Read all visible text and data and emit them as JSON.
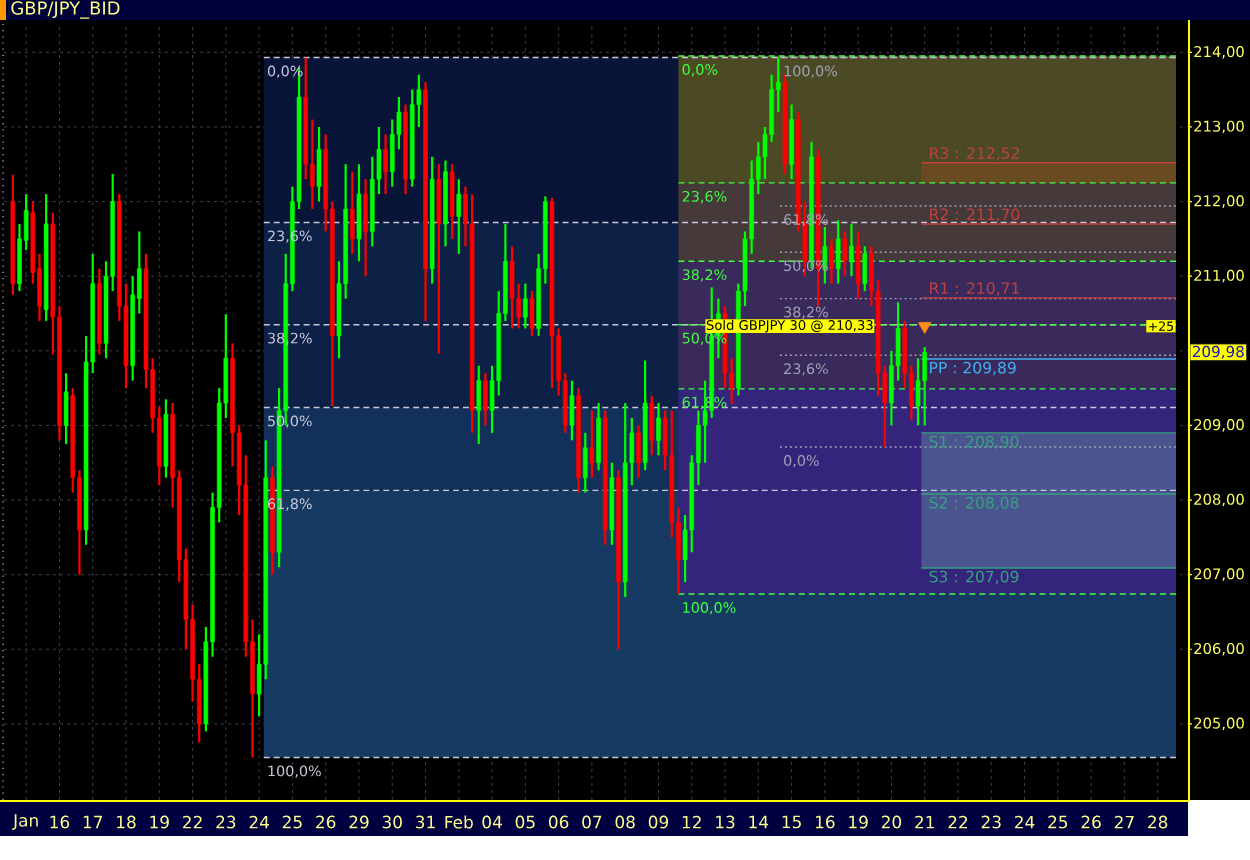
{
  "chart_data": {
    "type": "candlestick",
    "title": "GBP/JPY_BID",
    "categories": [
      null,
      null,
      "Jan",
      null,
      null,
      null,
      null,
      "16",
      null,
      null,
      null,
      null,
      "17",
      null,
      null,
      null,
      null,
      "18",
      null,
      null,
      null,
      null,
      "19",
      null,
      null,
      null,
      null,
      "22",
      null,
      null,
      null,
      null,
      "23",
      null,
      null,
      null,
      null,
      "24",
      null,
      null,
      null,
      null,
      "25",
      null,
      null,
      null,
      null,
      "26",
      null,
      null,
      null,
      null,
      "29",
      null,
      null,
      null,
      null,
      "30",
      null,
      null,
      null,
      null,
      "31",
      null,
      null,
      null,
      null,
      "Feb",
      null,
      null,
      null,
      null,
      "04",
      null,
      null,
      null,
      null,
      "05",
      null,
      null,
      null,
      null,
      "06",
      null,
      null,
      null,
      null,
      "07",
      null,
      null,
      null,
      null,
      "08",
      null,
      null,
      null,
      null,
      "09",
      null,
      null,
      null,
      null,
      "12",
      null,
      null,
      null,
      null,
      "13",
      null,
      null,
      null,
      null,
      "14",
      null,
      null,
      null,
      null,
      "15",
      null,
      null,
      null,
      null,
      "16",
      null,
      null,
      null,
      null,
      "19",
      null,
      null,
      null,
      null,
      "20",
      null,
      null,
      null,
      null,
      "21",
      null,
      null,
      null,
      null,
      "22",
      null,
      null,
      null,
      null,
      "23",
      null,
      null,
      null,
      null,
      "24",
      null,
      null,
      null,
      null,
      "25",
      null,
      null,
      null,
      null,
      "26",
      null,
      null,
      null,
      null,
      "27",
      null,
      null,
      null,
      null,
      "28",
      null,
      null,
      null,
      null
    ],
    "ohlc": [
      [
        212.0,
        212.36,
        210.75,
        210.9
      ],
      [
        210.9,
        211.7,
        210.8,
        211.5
      ],
      [
        211.48,
        212.1,
        211.35,
        211.88
      ],
      [
        211.85,
        212.0,
        210.9,
        211.05
      ],
      [
        211.1,
        211.3,
        210.4,
        210.6
      ],
      [
        210.55,
        212.1,
        210.4,
        211.7
      ],
      [
        211.7,
        211.85,
        209.95,
        210.45
      ],
      [
        210.45,
        210.6,
        208.8,
        209.0
      ],
      [
        209.0,
        209.7,
        208.75,
        209.45
      ],
      [
        209.4,
        209.5,
        208.1,
        208.3
      ],
      [
        208.3,
        208.4,
        207.0,
        207.6
      ],
      [
        207.6,
        210.2,
        207.4,
        209.85
      ],
      [
        209.85,
        211.3,
        209.7,
        210.9
      ],
      [
        210.9,
        211.1,
        209.95,
        210.1
      ],
      [
        210.1,
        211.2,
        209.9,
        211.0
      ],
      [
        211.0,
        212.37,
        210.8,
        212.0
      ],
      [
        212.0,
        212.1,
        210.4,
        210.6
      ],
      [
        210.6,
        210.9,
        209.5,
        209.8
      ],
      [
        209.8,
        211.0,
        209.6,
        210.75
      ],
      [
        210.7,
        211.6,
        210.5,
        211.1
      ],
      [
        211.1,
        211.3,
        209.5,
        209.75
      ],
      [
        209.75,
        209.9,
        208.9,
        209.1
      ],
      [
        209.1,
        209.25,
        208.2,
        208.45
      ],
      [
        208.45,
        209.35,
        208.3,
        209.15
      ],
      [
        209.15,
        209.3,
        207.9,
        208.3
      ],
      [
        208.3,
        208.4,
        206.9,
        207.2
      ],
      [
        207.2,
        207.35,
        206.0,
        206.4
      ],
      [
        206.4,
        206.6,
        205.3,
        205.6
      ],
      [
        205.6,
        205.8,
        204.75,
        205.0
      ],
      [
        205.0,
        206.3,
        204.9,
        206.1
      ],
      [
        206.1,
        208.1,
        205.9,
        207.9
      ],
      [
        207.9,
        209.5,
        207.7,
        209.3
      ],
      [
        209.3,
        210.49,
        209.1,
        209.9
      ],
      [
        209.9,
        210.1,
        208.45,
        208.9
      ],
      [
        208.9,
        209.0,
        207.8,
        208.2
      ],
      [
        208.2,
        208.6,
        205.9,
        206.1
      ],
      [
        206.1,
        206.4,
        204.55,
        205.4
      ],
      [
        205.4,
        206.2,
        205.1,
        205.8
      ],
      [
        205.8,
        208.8,
        205.6,
        208.3
      ],
      [
        208.3,
        208.45,
        207.0,
        207.3
      ],
      [
        207.3,
        209.5,
        207.1,
        209.2
      ],
      [
        209.2,
        211.3,
        209.0,
        210.9
      ],
      [
        210.9,
        212.2,
        210.8,
        212.0
      ],
      [
        212.0,
        213.8,
        211.9,
        213.4
      ],
      [
        213.4,
        213.93,
        212.3,
        212.5
      ],
      [
        212.5,
        213.1,
        211.9,
        212.2
      ],
      [
        212.2,
        213.0,
        212.0,
        212.7
      ],
      [
        212.7,
        212.9,
        211.6,
        211.9
      ],
      [
        211.9,
        212.0,
        209.26,
        210.2
      ],
      [
        210.2,
        211.2,
        209.9,
        210.9
      ],
      [
        210.9,
        212.5,
        210.7,
        211.9
      ],
      [
        211.9,
        212.4,
        211.3,
        211.5
      ],
      [
        211.5,
        212.5,
        211.2,
        212.1
      ],
      [
        212.1,
        212.3,
        211.0,
        211.6
      ],
      [
        211.6,
        212.6,
        211.4,
        212.3
      ],
      [
        212.3,
        213.0,
        212.1,
        212.7
      ],
      [
        212.7,
        212.9,
        212.1,
        212.4
      ],
      [
        212.4,
        213.1,
        212.2,
        212.9
      ],
      [
        212.9,
        213.4,
        212.7,
        213.2
      ],
      [
        213.2,
        213.3,
        212.1,
        212.3
      ],
      [
        212.3,
        213.5,
        212.2,
        213.3
      ],
      [
        213.3,
        213.7,
        213.0,
        213.5
      ],
      [
        213.5,
        213.6,
        210.4,
        211.1
      ],
      [
        211.1,
        212.6,
        210.9,
        212.3
      ],
      [
        212.3,
        212.5,
        209.96,
        211.7
      ],
      [
        211.7,
        212.55,
        211.4,
        212.4
      ],
      [
        212.4,
        212.5,
        211.5,
        211.8
      ],
      [
        211.8,
        212.3,
        211.3,
        212.1
      ],
      [
        212.1,
        212.2,
        211.4,
        211.7
      ],
      [
        211.7,
        212.1,
        208.9,
        209.2
      ],
      [
        209.2,
        209.8,
        208.75,
        209.6
      ],
      [
        209.6,
        209.7,
        209.0,
        209.2
      ],
      [
        209.2,
        209.8,
        208.9,
        209.6
      ],
      [
        209.6,
        210.8,
        209.4,
        210.5
      ],
      [
        210.5,
        211.7,
        210.4,
        211.2
      ],
      [
        211.2,
        211.4,
        210.3,
        210.7
      ],
      [
        210.7,
        210.9,
        210.3,
        210.45
      ],
      [
        210.45,
        210.9,
        210.3,
        210.7
      ],
      [
        210.7,
        210.8,
        210.2,
        210.3
      ],
      [
        210.3,
        211.3,
        210.2,
        211.1
      ],
      [
        211.1,
        212.07,
        210.9,
        212.0
      ],
      [
        212.0,
        212.05,
        209.5,
        210.2
      ],
      [
        210.2,
        210.3,
        209.4,
        209.6
      ],
      [
        209.6,
        209.7,
        208.9,
        209.0
      ],
      [
        209.0,
        209.6,
        208.8,
        209.4
      ],
      [
        209.4,
        209.5,
        208.1,
        208.3
      ],
      [
        208.3,
        208.9,
        208.1,
        208.7
      ],
      [
        208.7,
        209.2,
        208.3,
        208.5
      ],
      [
        208.5,
        209.3,
        208.4,
        209.1
      ],
      [
        209.1,
        209.2,
        207.4,
        207.6
      ],
      [
        207.6,
        208.5,
        207.4,
        208.3
      ],
      [
        208.3,
        208.4,
        206.0,
        206.9
      ],
      [
        206.9,
        209.3,
        206.7,
        208.5
      ],
      [
        208.5,
        209.1,
        208.2,
        208.9
      ],
      [
        208.9,
        209.0,
        208.3,
        208.5
      ],
      [
        208.5,
        209.87,
        208.4,
        209.3
      ],
      [
        209.3,
        209.4,
        208.6,
        208.8
      ],
      [
        208.8,
        209.3,
        208.6,
        209.1
      ],
      [
        209.1,
        209.2,
        208.4,
        208.6
      ],
      [
        208.6,
        209.2,
        207.5,
        207.7
      ],
      [
        207.7,
        207.9,
        206.74,
        207.2
      ],
      [
        207.2,
        207.8,
        206.9,
        207.6
      ],
      [
        207.6,
        208.6,
        207.3,
        208.5
      ],
      [
        208.5,
        209.2,
        208.2,
        209.0
      ],
      [
        209.0,
        209.6,
        208.5,
        209.2
      ],
      [
        209.2,
        210.85,
        209.1,
        210.2
      ],
      [
        210.2,
        210.7,
        209.9,
        210.5
      ],
      [
        210.5,
        210.6,
        209.5,
        209.7
      ],
      [
        209.7,
        209.9,
        209.29,
        209.5
      ],
      [
        209.5,
        210.9,
        209.4,
        210.8
      ],
      [
        210.8,
        211.6,
        210.6,
        211.5
      ],
      [
        211.5,
        212.55,
        211.3,
        212.3
      ],
      [
        212.3,
        212.8,
        212.1,
        212.6
      ],
      [
        212.6,
        213.0,
        212.3,
        212.9
      ],
      [
        212.9,
        213.7,
        212.8,
        213.5
      ],
      [
        213.5,
        213.93,
        213.2,
        213.6
      ],
      [
        213.6,
        213.7,
        212.37,
        212.5
      ],
      [
        212.5,
        213.3,
        212.3,
        213.1
      ],
      [
        213.1,
        213.2,
        211.6,
        211.7
      ],
      [
        211.7,
        212.0,
        211.0,
        211.2
      ],
      [
        211.2,
        212.8,
        211.1,
        212.6
      ],
      [
        212.6,
        212.7,
        210.6,
        211.1
      ],
      [
        211.1,
        211.66,
        210.9,
        211.4
      ],
      [
        211.4,
        211.5,
        210.9,
        211.1
      ],
      [
        211.1,
        211.75,
        210.9,
        211.5
      ],
      [
        211.5,
        211.6,
        211.0,
        211.2
      ],
      [
        211.2,
        211.7,
        211.0,
        211.4
      ],
      [
        211.4,
        211.6,
        210.7,
        210.9
      ],
      [
        210.9,
        211.4,
        210.8,
        211.3
      ],
      [
        211.3,
        211.4,
        210.6,
        210.8
      ],
      [
        210.8,
        210.95,
        209.4,
        209.7
      ],
      [
        209.7,
        209.8,
        208.71,
        209.3
      ],
      [
        209.3,
        210.0,
        209.0,
        209.8
      ],
      [
        209.8,
        210.65,
        209.6,
        210.3
      ],
      [
        210.3,
        210.4,
        209.5,
        209.7
      ],
      [
        209.7,
        209.8,
        209.07,
        209.26
      ],
      [
        209.26,
        209.9,
        209.0,
        209.6
      ],
      [
        209.6,
        210.05,
        209.0,
        209.98
      ],
      null,
      null,
      null,
      null,
      null,
      null,
      null,
      null,
      null,
      null,
      null,
      null,
      null,
      null,
      null,
      null,
      null,
      null,
      null,
      null,
      null,
      null,
      null,
      null,
      null,
      null,
      null,
      null,
      null,
      null,
      null,
      null,
      null,
      null,
      null,
      null,
      null,
      null,
      null
    ],
    "colors": [
      "#ff0000",
      "#00ff00",
      "#00ff00",
      "#ff0000",
      "#ff0000",
      "#00ff00",
      "#ff0000",
      "#ff0000",
      "#00ff00",
      "#ff0000",
      "#ff0000",
      "#00ff00",
      "#00ff00",
      "#ff0000",
      "#00ff00",
      "#00ff00",
      "#ff0000",
      "#ff0000",
      "#00ff00",
      "#00ff00",
      "#ff0000",
      "#ff0000",
      "#ff0000",
      "#00ff00",
      "#ff0000",
      "#ff0000",
      "#ff0000",
      "#ff0000",
      "#ff0000",
      "#00ff00",
      "#00ff00",
      "#00ff00",
      "#00ff00",
      "#ff0000",
      "#ff0000",
      "#ff0000",
      "#ff0000",
      "#00ff00",
      "#00ff00",
      "#ff0000",
      "#00ff00",
      "#00ff00",
      "#00ff00",
      "#00ff00",
      "#ff0000",
      "#ff0000",
      "#00ff00",
      "#ff0000",
      "#ff0000",
      "#00ff00",
      "#00ff00",
      "#ff0000",
      "#00ff00",
      "#ff0000",
      "#00ff00",
      "#00ff00",
      "#ff0000",
      "#00ff00",
      "#00ff00",
      "#ff0000",
      "#00ff00",
      "#00ff00",
      "#ff0000",
      "#00ff00",
      "#ff0000",
      "#00ff00",
      "#ff0000",
      "#00ff00",
      "#ff0000",
      "#ff0000",
      "#00ff00",
      "#ff0000",
      "#00ff00",
      "#00ff00",
      "#00ff00",
      "#ff0000",
      "#ff0000",
      "#00ff00",
      "#ff0000",
      "#00ff00",
      "#00ff00",
      "#ff0000",
      "#ff0000",
      "#ff0000",
      "#00ff00",
      "#ff0000",
      "#00ff00",
      "#ff0000",
      "#00ff00",
      "#ff0000",
      "#00ff00",
      "#ff0000",
      "#00ff00",
      "#00ff00",
      "#ff0000",
      "#00ff00",
      "#ff0000",
      "#00ff00",
      "#ff0000",
      "#ff0000",
      "#ff0000",
      "#00ff00",
      "#00ff00",
      "#00ff00",
      "#00ff00",
      "#00ff00",
      "#00ff00",
      "#ff0000",
      "#ff0000",
      "#00ff00",
      "#00ff00",
      "#00ff00",
      "#00ff00",
      "#00ff00",
      "#00ff00",
      "#00ff00",
      "#ff0000",
      "#00ff00",
      "#ff0000",
      "#ff0000",
      "#00ff00",
      "#ff0000",
      "#00ff00",
      "#ff0000",
      "#00ff00",
      "#ff0000",
      "#00ff00",
      "#ff0000",
      "#00ff00",
      "#ff0000",
      "#ff0000",
      "#ff0000",
      "#00ff00",
      "#00ff00",
      "#ff0000",
      "#ff0000",
      "#00ff00",
      "#00ff00",
      null,
      null,
      null,
      null,
      null,
      null,
      null,
      null,
      null,
      null,
      null,
      null,
      null,
      null,
      null,
      null,
      null,
      null,
      null,
      null,
      null,
      null,
      null,
      null,
      null,
      null,
      null,
      null,
      null,
      null,
      null,
      null,
      null,
      null,
      null,
      null,
      null,
      null,
      null
    ],
    "series": [
      {
        "type": "scatter",
        "values": [
          null,
          null,
          null,
          null,
          null,
          null,
          null,
          null,
          null,
          null,
          null,
          null,
          null,
          null,
          null,
          null,
          null,
          null,
          null,
          null,
          null,
          null,
          null,
          null,
          null,
          null,
          null,
          null,
          null,
          null,
          null,
          null,
          null,
          null,
          null,
          null,
          null,
          null,
          null,
          null,
          null,
          null,
          null,
          null,
          null,
          null,
          null,
          null,
          null,
          null,
          null,
          null,
          null,
          null,
          null,
          null,
          null,
          null,
          null,
          null,
          null,
          null,
          null,
          null,
          null,
          null,
          null,
          null,
          null,
          null,
          null,
          null,
          null,
          null,
          null,
          null,
          null,
          null,
          null,
          null,
          null,
          null,
          null,
          null,
          null,
          null,
          null,
          null,
          null,
          null,
          null,
          null,
          null,
          null,
          null,
          null,
          null,
          null,
          null,
          null,
          null,
          null,
          null,
          null,
          null,
          null,
          null,
          null,
          null,
          null,
          null,
          null,
          null,
          null,
          null,
          null,
          null,
          null,
          null,
          null,
          null,
          null,
          null,
          null,
          null,
          null,
          null,
          null,
          null,
          null,
          null,
          null,
          null,
          null,
          null,
          null,
          null,
          210.33,
          null,
          null,
          null,
          null,
          null,
          null,
          null,
          null,
          null,
          null,
          null,
          null,
          null,
          null,
          null,
          null,
          null,
          null,
          null,
          null,
          null,
          null,
          null,
          null,
          null,
          null,
          null,
          null,
          null,
          null,
          null,
          null,
          null,
          null,
          null,
          null,
          null,
          null,
          null
        ],
        "color": "#ff8c1a",
        "marker": "triangle"
      }
    ],
    "ref_lines": [
      {
        "axis": "y",
        "value": 213.93,
        "color": "#c8c8dc",
        "line_style": "dashed"
      },
      {
        "axis": "y",
        "value": 211.72,
        "color": "#c8c8dc",
        "line_style": "dashed"
      },
      {
        "axis": "y",
        "value": 210.35,
        "color": "#c8c8dc",
        "line_style": "dashed"
      },
      {
        "axis": "y",
        "value": 209.24,
        "color": "#c8c8dc",
        "line_style": "dashed"
      },
      {
        "axis": "y",
        "value": 208.13,
        "color": "#c8c8dc",
        "line_style": "dashed"
      },
      {
        "axis": "y",
        "value": 204.55,
        "color": "#c8c8dc",
        "line_style": "dashed"
      },
      {
        "axis": "y",
        "value": 213.95,
        "color": "#40ff40",
        "line_style": "dashed"
      },
      {
        "axis": "y",
        "value": 212.25,
        "color": "#40ff40",
        "line_style": "dashed"
      },
      {
        "axis": "y",
        "value": 211.2,
        "color": "#40ff40",
        "line_style": "dashed"
      },
      {
        "axis": "y",
        "value": 210.35,
        "color": "#40ff40",
        "line_style": "dashed"
      },
      {
        "axis": "y",
        "value": 209.49,
        "color": "#40ff40",
        "line_style": "dashed"
      },
      {
        "axis": "y",
        "value": 206.74,
        "color": "#40ff40",
        "line_style": "dashed"
      },
      {
        "axis": "y",
        "value": 213.93,
        "color": "#a0a0b4",
        "line_style": "dotted"
      },
      {
        "axis": "y",
        "value": 211.94,
        "color": "#a0a0b4",
        "line_style": "dotted"
      },
      {
        "axis": "y",
        "value": 211.32,
        "color": "#a0a0b4",
        "line_style": "dotted"
      },
      {
        "axis": "y",
        "value": 210.7,
        "color": "#a0a0b4",
        "line_style": "dotted"
      },
      {
        "axis": "y",
        "value": 209.94,
        "color": "#a0a0b4",
        "line_style": "dotted"
      },
      {
        "axis": "y",
        "value": 208.71,
        "color": "#a0a0b4",
        "line_style": "dotted"
      },
      {
        "axis": "y",
        "value": 212.52,
        "label": "R3 : 212,52",
        "color": "#c04040",
        "line_style": "solid"
      },
      {
        "axis": "y",
        "value": 211.7,
        "label": "R2 : 211,70",
        "color": "#c04040",
        "line_style": "solid"
      },
      {
        "axis": "y",
        "value": 210.71,
        "label": "R1 : 210,71",
        "color": "#c04040",
        "line_style": "solid"
      },
      {
        "axis": "y",
        "value": 209.89,
        "label": "PP : 209,89",
        "color": "#40b0f0",
        "line_style": "solid"
      },
      {
        "axis": "y",
        "value": 208.9,
        "label": "S1 : 208,90",
        "color": "#36a080",
        "line_style": "solid"
      },
      {
        "axis": "y",
        "value": 208.08,
        "label": "S2 : 208,08",
        "color": "#36a080",
        "line_style": "solid"
      },
      {
        "axis": "y",
        "value": 207.09,
        "label": "S3 : 207,09",
        "color": "#36a080",
        "line_style": "solid"
      }
    ],
    "bands": [
      {
        "axis": "y",
        "from": 211.72,
        "to": 213.93,
        "color": "#081538"
      },
      {
        "axis": "y",
        "from": 209.24,
        "to": 211.72,
        "color": "#0d2147"
      },
      {
        "axis": "y",
        "from": 208.13,
        "to": 209.24,
        "color": "#12305a"
      },
      {
        "axis": "y",
        "from": 204.55,
        "to": 208.13,
        "color": "#163a62"
      },
      {
        "axis": "y",
        "from": 212.25,
        "to": 213.95,
        "color": "#4c4a24"
      },
      {
        "axis": "y",
        "from": 211.2,
        "to": 212.25,
        "color": "#46393a"
      },
      {
        "axis": "y",
        "from": 209.49,
        "to": 211.2,
        "color": "#3a2a5c"
      },
      {
        "axis": "y",
        "from": 206.74,
        "to": 209.49,
        "color": "#34247c"
      },
      {
        "axis": "y",
        "from": 212.25,
        "to": 212.52,
        "color": "#6a4a20"
      },
      {
        "axis": "y",
        "from": 207.09,
        "to": 208.9,
        "color": "#4a5590"
      }
    ],
    "annotations": [
      {
        "text": "Sold GBPJPY 30 @ 210,33",
        "y": 210.33
      },
      {
        "text": "+25",
        "y": 210.33
      },
      {
        "text": "0,0%",
        "y": 213.93
      },
      {
        "text": "23,6%",
        "y": 211.72
      },
      {
        "text": "38,2%",
        "y": 210.35
      },
      {
        "text": "50,0%",
        "y": 209.24
      },
      {
        "text": "61,8%",
        "y": 208.13
      },
      {
        "text": "100,0%",
        "y": 204.55
      },
      {
        "text": "0,0%",
        "y": 213.95
      },
      {
        "text": "23,6%",
        "y": 212.25
      },
      {
        "text": "38,2%",
        "y": 211.2
      },
      {
        "text": "50,0%",
        "y": 210.35
      },
      {
        "text": "61,8%",
        "y": 209.49
      },
      {
        "text": "100,0%",
        "y": 206.74
      },
      {
        "text": "100,0%",
        "y": 213.93
      },
      {
        "text": "61,8%",
        "y": 211.94
      },
      {
        "text": "50,0%",
        "y": 211.32
      },
      {
        "text": "38,2%",
        "y": 210.7
      },
      {
        "text": "23,6%",
        "y": 209.94
      },
      {
        "text": "0,0%",
        "y": 208.71
      }
    ],
    "ylim": [
      203.98,
      214.38
    ],
    "yticks": [
      {
        "value": 205,
        "label": "205,00"
      },
      {
        "value": 206,
        "label": "206,00"
      },
      {
        "value": 207,
        "label": "207,00"
      },
      {
        "value": 208,
        "label": "208,00"
      },
      {
        "value": 209,
        "label": "209,00"
      },
      {
        "value": 209.98,
        "label": "209,98"
      },
      {
        "value": 210,
        "label": null
      },
      {
        "value": 211,
        "label": "211,00"
      },
      {
        "value": 212,
        "label": "212,00"
      },
      {
        "value": 213,
        "label": "213,00"
      },
      {
        "value": 214,
        "label": "214,00"
      }
    ],
    "grid": true
  }
}
